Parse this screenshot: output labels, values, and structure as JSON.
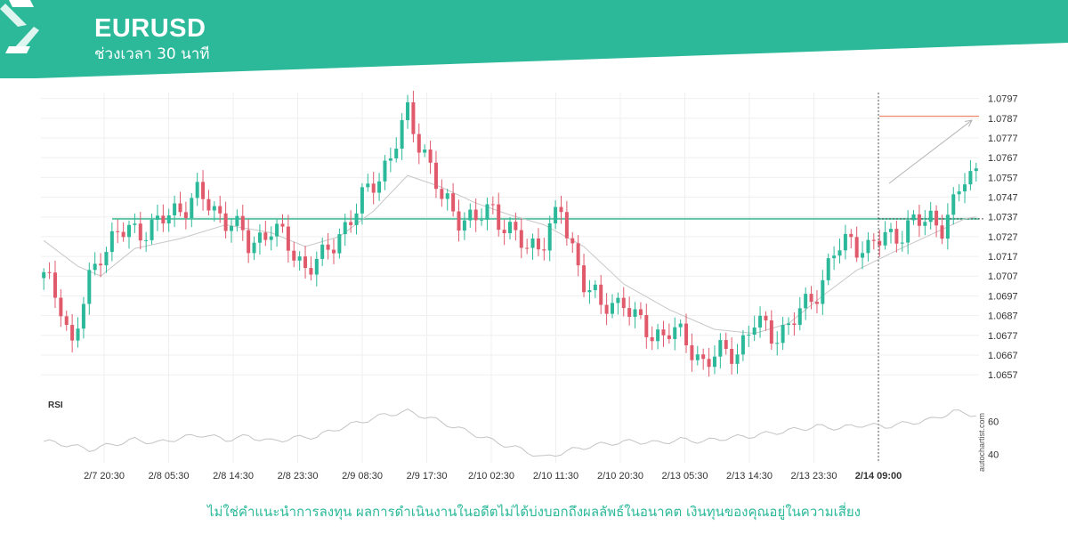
{
  "header": {
    "symbol": "EURUSD",
    "interval": "ช่วงเวลา 30 นาที",
    "accent_color": "#2bb99a"
  },
  "chart_data": {
    "type": "candlestick",
    "title": "EURUSD",
    "subtitle": "ช่วงเวลา 30 นาที",
    "y_ticks": [
      "1.0797",
      "1.0787",
      "1.0777",
      "1.0767",
      "1.0757",
      "1.0747",
      "1.0737",
      "1.0727",
      "1.0717",
      "1.0707",
      "1.0697",
      "1.0687",
      "1.0677",
      "1.0667",
      "1.0657"
    ],
    "ylim": [
      1.0653,
      1.08
    ],
    "x_ticks": [
      "2/7 20:30",
      "2/8 05:30",
      "2/8 14:30",
      "2/8 23:30",
      "2/9 08:30",
      "2/9 17:30",
      "2/10 02:30",
      "2/10 11:30",
      "2/10 20:30",
      "2/13 05:30",
      "2/13 14:30",
      "2/13 23:30",
      "2/14 09:00"
    ],
    "highlighted_x_tick": "2/14 09:00",
    "support_level": 1.0736,
    "forecast_target": 1.0788,
    "up_color": "#2bb99a",
    "down_color": "#e05a6b",
    "price_path": [
      [
        0,
        1.0706
      ],
      [
        3,
        1.0694
      ],
      [
        5,
        1.0671
      ],
      [
        8,
        1.0704
      ],
      [
        10,
        1.072
      ],
      [
        13,
        1.0728
      ],
      [
        16,
        1.073
      ],
      [
        20,
        1.0733
      ],
      [
        24,
        1.0742
      ],
      [
        27,
        1.0748
      ],
      [
        30,
        1.074
      ],
      [
        33,
        1.0735
      ],
      [
        36,
        1.0722
      ],
      [
        40,
        1.0732
      ],
      [
        43,
        1.0722
      ],
      [
        46,
        1.0712
      ],
      [
        49,
        1.0715
      ],
      [
        52,
        1.0729
      ],
      [
        55,
        1.074
      ],
      [
        58,
        1.0755
      ],
      [
        61,
        1.0767
      ],
      [
        64,
        1.0789
      ],
      [
        67,
        1.077
      ],
      [
        70,
        1.0745
      ],
      [
        73,
        1.0738
      ],
      [
        76,
        1.0735
      ],
      [
        79,
        1.0741
      ],
      [
        82,
        1.073
      ],
      [
        85,
        1.072
      ],
      [
        88,
        1.0727
      ],
      [
        91,
        1.074
      ],
      [
        92,
        1.0728
      ],
      [
        95,
        1.0706
      ],
      [
        98,
        1.069
      ],
      [
        102,
        1.0696
      ],
      [
        104,
        1.0684
      ],
      [
        107,
        1.0677
      ],
      [
        110,
        1.068
      ],
      [
        113,
        1.0673
      ],
      [
        116,
        1.0664
      ],
      [
        119,
        1.0667
      ],
      [
        122,
        1.067
      ],
      [
        125,
        1.0683
      ],
      [
        128,
        1.0678
      ],
      [
        131,
        1.0681
      ],
      [
        134,
        1.0692
      ],
      [
        137,
        1.0705
      ],
      [
        139,
        1.0718
      ],
      [
        142,
        1.0726
      ],
      [
        145,
        1.072
      ],
      [
        148,
        1.0727
      ],
      [
        151,
        1.073
      ],
      [
        154,
        1.0734
      ],
      [
        156,
        1.0737
      ],
      [
        158,
        1.0733
      ],
      [
        160,
        1.0741
      ],
      [
        162,
        1.0757
      ],
      [
        164,
        1.0761
      ]
    ],
    "ma_path": [
      [
        0,
        1.0725
      ],
      [
        6,
        1.0712
      ],
      [
        10,
        1.0707
      ],
      [
        16,
        1.0721
      ],
      [
        24,
        1.0726
      ],
      [
        32,
        1.0733
      ],
      [
        40,
        1.0729
      ],
      [
        46,
        1.0722
      ],
      [
        52,
        1.0727
      ],
      [
        58,
        1.074
      ],
      [
        64,
        1.0758
      ],
      [
        70,
        1.0752
      ],
      [
        76,
        1.0744
      ],
      [
        82,
        1.0738
      ],
      [
        88,
        1.0733
      ],
      [
        95,
        1.0722
      ],
      [
        102,
        1.0703
      ],
      [
        110,
        1.069
      ],
      [
        118,
        1.068
      ],
      [
        125,
        1.0678
      ],
      [
        131,
        1.0683
      ],
      [
        137,
        1.0697
      ],
      [
        143,
        1.071
      ],
      [
        150,
        1.072
      ],
      [
        156,
        1.0728
      ],
      [
        162,
        1.0736
      ],
      [
        164,
        1.0737
      ]
    ],
    "rsi": {
      "label": "RSI",
      "y_ticks": [
        "60",
        "40"
      ],
      "ylim": [
        35,
        70
      ],
      "values": [
        [
          0,
          48
        ],
        [
          4,
          46
        ],
        [
          8,
          43
        ],
        [
          12,
          46
        ],
        [
          16,
          49
        ],
        [
          20,
          47
        ],
        [
          24,
          50
        ],
        [
          28,
          52
        ],
        [
          32,
          49
        ],
        [
          36,
          51
        ],
        [
          40,
          48
        ],
        [
          44,
          50
        ],
        [
          48,
          51
        ],
        [
          52,
          56
        ],
        [
          56,
          60
        ],
        [
          60,
          64
        ],
        [
          64,
          66
        ],
        [
          68,
          62
        ],
        [
          72,
          57
        ],
        [
          76,
          52
        ],
        [
          80,
          47
        ],
        [
          84,
          43
        ],
        [
          88,
          38
        ],
        [
          92,
          42
        ],
        [
          96,
          45
        ],
        [
          100,
          47
        ],
        [
          104,
          48
        ],
        [
          108,
          47
        ],
        [
          112,
          49
        ],
        [
          116,
          48
        ],
        [
          120,
          50
        ],
        [
          124,
          51
        ],
        [
          128,
          53
        ],
        [
          132,
          55
        ],
        [
          136,
          57
        ],
        [
          140,
          56
        ],
        [
          144,
          58
        ],
        [
          148,
          57
        ],
        [
          152,
          59
        ],
        [
          156,
          61
        ],
        [
          160,
          66
        ],
        [
          164,
          64
        ]
      ]
    },
    "watermark": "autochartist.com"
  },
  "footer": {
    "disclaimer": "ไม่ใช่คำแนะนำการลงทุน ผลการดำเนินงานในอดีตไม่ได้บ่งบอกถึงผลลัพธ์ในอนาคต เงินทุนของคุณอยู่ในความเสี่ยง"
  }
}
